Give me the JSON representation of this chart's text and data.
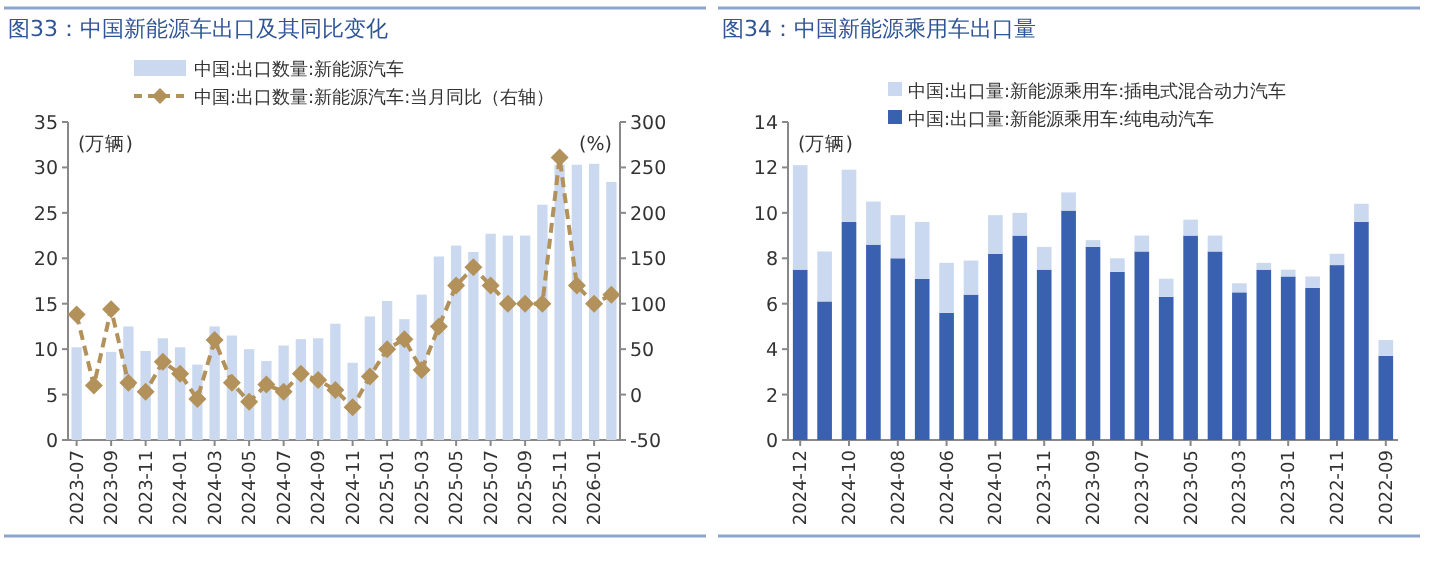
{
  "chart_data": [
    {
      "type": "bar",
      "title": "图33：中国新能源车出口及其同比变化",
      "ylabel": "(万辆)",
      "y2label": "(%)",
      "legend": "top",
      "categories": [
        "2023-07",
        null,
        "2023-09",
        null,
        "2023-11",
        null,
        "2024-01",
        null,
        "2024-03",
        null,
        "2024-05",
        null,
        "2024-07",
        null,
        "2024-09",
        null,
        "2024-11",
        null,
        "2025-01",
        null,
        "2025-03",
        null,
        "2025-05",
        null,
        "2025-07",
        null,
        "2025-09",
        null,
        "2025-11",
        null,
        "2026-01",
        null
      ],
      "ylim": [
        0,
        35
      ],
      "yticks": [
        0,
        5,
        10,
        15,
        20,
        25,
        30,
        35
      ],
      "y2lim": [
        -50,
        300
      ],
      "y2ticks": [
        -50,
        0,
        50,
        100,
        150,
        200,
        250,
        300
      ],
      "series": [
        {
          "name": "中国:出口数量:新能源汽车",
          "type": "bar",
          "color": "#cbd9f0",
          "values": [
            10.2,
            null,
            9.7,
            12.5,
            9.8,
            11.2,
            10.2,
            8.3,
            12.5,
            11.5,
            10.0,
            8.7,
            10.4,
            11.1,
            11.2,
            12.8,
            8.5,
            13.6,
            15.3,
            13.3,
            16.0,
            20.2,
            21.4,
            20.7,
            22.7,
            22.5,
            22.5,
            25.9,
            30.3,
            30.3,
            30.4,
            28.4
          ]
        },
        {
          "name": "中国:出口数量:新能源汽车:当月同比（右轴）",
          "type": "line",
          "axis": "y2",
          "color": "#b3915a",
          "marker": "diamond",
          "line_style": "dashed",
          "values": [
            88,
            10,
            94,
            13,
            3,
            36,
            23,
            -5,
            60,
            13,
            -8,
            11,
            3,
            23,
            16,
            5,
            -14,
            20,
            50,
            61,
            27,
            75,
            120,
            140,
            120,
            100,
            100,
            100,
            261,
            120,
            100,
            110
          ]
        }
      ]
    },
    {
      "type": "bar",
      "title": "图34：中国新能源乘用车出口量",
      "ylabel": "(万辆)",
      "legend": "top",
      "stacked": true,
      "categories": [
        "2024-12",
        null,
        "2024-10",
        null,
        "2024-08",
        null,
        "2024-06",
        null,
        "2024-01",
        null,
        "2023-11",
        null,
        "2023-09",
        null,
        "2023-07",
        null,
        "2023-05",
        null,
        "2023-03",
        null,
        "2023-01",
        null,
        "2022-11",
        null,
        "2022-09"
      ],
      "ylim": [
        0,
        14
      ],
      "yticks": [
        0,
        2,
        4,
        6,
        8,
        10,
        12,
        14
      ],
      "series": [
        {
          "name": "中国:出口量:新能源乘用车:纯电动汽车",
          "color": "#3a61b0",
          "values": [
            7.5,
            6.1,
            9.6,
            8.6,
            8.0,
            7.1,
            5.6,
            6.4,
            8.2,
            9.0,
            7.5,
            10.1,
            8.5,
            7.4,
            8.3,
            6.3,
            9.0,
            8.3,
            6.5,
            7.5,
            7.2,
            6.7,
            7.7,
            9.6,
            3.7
          ]
        },
        {
          "name": "中国:出口量:新能源乘用车:插电式混合动力汽车",
          "color": "#cbd9f0",
          "values": [
            4.6,
            2.2,
            2.3,
            1.9,
            1.9,
            2.5,
            2.2,
            1.5,
            1.7,
            1.0,
            1.0,
            0.8,
            0.3,
            0.6,
            0.7,
            0.8,
            0.7,
            0.7,
            0.4,
            0.3,
            0.3,
            0.5,
            0.5,
            0.8,
            0.7
          ]
        }
      ]
    }
  ]
}
